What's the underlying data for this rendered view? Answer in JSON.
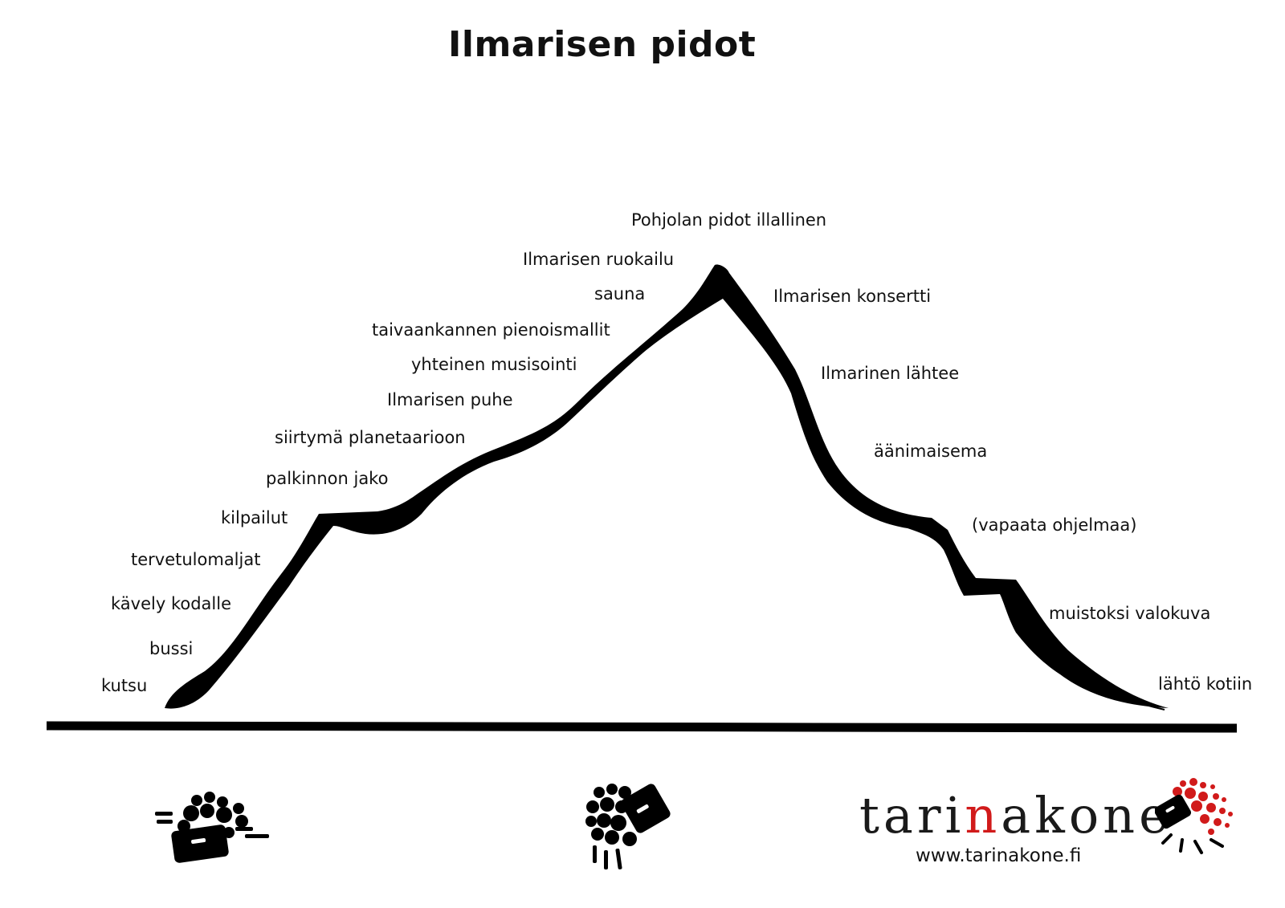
{
  "title": "Ilmarisen pidot",
  "stages": [
    {
      "id": "kutsu",
      "label": "kutsu"
    },
    {
      "id": "bussi",
      "label": "bussi"
    },
    {
      "id": "kavely",
      "label": "kävely kodalle"
    },
    {
      "id": "tervetulomaljat",
      "label": "tervetulomaljat"
    },
    {
      "id": "kilpailut",
      "label": "kilpailut"
    },
    {
      "id": "palkinnon",
      "label": "palkinnon jako"
    },
    {
      "id": "siirtyma",
      "label": "siirtymä planetaarioon"
    },
    {
      "id": "puhe",
      "label": "Ilmarisen puhe"
    },
    {
      "id": "musisointi",
      "label": "yhteinen musisointi"
    },
    {
      "id": "taivaankannen",
      "label": "taivaankannen pienoismallit"
    },
    {
      "id": "sauna",
      "label": "sauna"
    },
    {
      "id": "ruokailu",
      "label": "Ilmarisen ruokailu"
    },
    {
      "id": "pohjolan",
      "label": "Pohjolan pidot illallinen"
    },
    {
      "id": "konsertti",
      "label": "Ilmarisen konsertti"
    },
    {
      "id": "lahtee",
      "label": "Ilmarinen lähtee"
    },
    {
      "id": "aanimaisema",
      "label": "äänimaisema"
    },
    {
      "id": "vapaata",
      "label": "(vapaata ohjelmaa)"
    },
    {
      "id": "valokuva",
      "label": "muistoksi valokuva"
    },
    {
      "id": "kotiin",
      "label": "lähtö kotiin"
    }
  ],
  "logo": {
    "part_a": "tari",
    "part_b": "n",
    "part_c": "akone",
    "url": "www.tarinakone.fi"
  },
  "icons": [
    "moving-crowd-icon",
    "falling-crowd-icon",
    "tarinakone-burst-icon"
  ],
  "colors": {
    "curve": "#000000",
    "accent": "#d11a1a"
  }
}
